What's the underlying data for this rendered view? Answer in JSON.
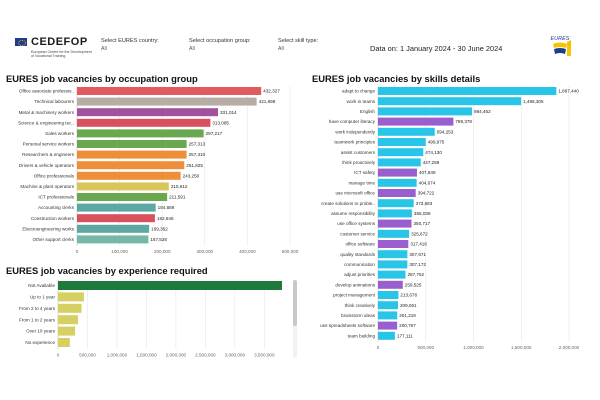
{
  "header": {
    "logo_name": "CEDEFOP",
    "logo_subtitle": "European Centre for the Development of Vocational Training",
    "filters": [
      {
        "label": "Select EURES country:",
        "value": "All"
      },
      {
        "label": "Select occupation group:",
        "value": "All"
      },
      {
        "label": "Select skill type:",
        "value": "All"
      }
    ],
    "date_range": "Data on: 1 January 2024 - 30 June 2024",
    "eures_logo_text": "EURES",
    "colors": {
      "eu_blue": "#1f3b8f",
      "eu_yellow": "#f5c400"
    }
  },
  "panels": {
    "occupation_title": "EURES job vacancies by occupation group",
    "experience_title": "EURES job vacancies by experience required",
    "skills_title": "EURES job vacancies by skills details"
  },
  "chart_data": [
    {
      "id": "occupation",
      "type": "bar",
      "orientation": "horizontal",
      "title": "EURES job vacancies by occupation group",
      "categories": [
        "Office associate professio..",
        "Technical labourers",
        "Metal & machinery workers",
        "Science & engineering tec..",
        "Sales workers",
        "Personal service workers",
        "Researchers & engineers",
        "Drivers & vehicle operators",
        "Office professionals",
        "Machine & plant operators",
        "ICT professionals",
        "Accounting clerks",
        "Construction workers",
        "Electroengineering works",
        "Other support clerks"
      ],
      "values": [
        432327,
        421698,
        331014,
        313085,
        297217,
        257313,
        257310,
        251825,
        243250,
        215612,
        211591,
        184689,
        182846,
        169362,
        167528
      ],
      "value_labels": [
        "432,327",
        "421,698",
        "331,014",
        "313,085",
        "297,217",
        "257,313",
        "257,310",
        "251,825",
        "243,250",
        "215,612",
        "211,591",
        "184,689",
        "182,846",
        "169,362",
        "167,528"
      ],
      "colors": [
        "#e05a5f",
        "#b8aca7",
        "#a2519c",
        "#d9505f",
        "#6aa84f",
        "#6aa84f",
        "#ef8e39",
        "#ef8e39",
        "#ef8e39",
        "#d7c65a",
        "#6aa84f",
        "#5ca8a3",
        "#d9505f",
        "#5ca8a3",
        "#76b7a8"
      ],
      "xlim": [
        0,
        500000
      ],
      "ticks": [
        0,
        100000,
        200000,
        300000,
        400000,
        500000
      ],
      "tick_labels": [
        "0",
        "100,000",
        "200,000",
        "300,000",
        "400,000",
        "500,000"
      ],
      "grid": true
    },
    {
      "id": "experience",
      "type": "bar",
      "orientation": "horizontal",
      "title": "EURES job vacancies by experience required",
      "categories": [
        "Not Available",
        "Up to 1 year",
        "From 2 to 4 years",
        "From 1 to 2 years",
        "Over 10 years",
        "No experience"
      ],
      "values": [
        3800000,
        440000,
        400000,
        340000,
        290000,
        200000
      ],
      "colors": [
        "#1e7a3c",
        "#d6cf62",
        "#d6cf62",
        "#d6cf62",
        "#d6cf62",
        "#d6cf62"
      ],
      "xlim": [
        0,
        3800000
      ],
      "ticks": [
        0,
        500000,
        1000000,
        1500000,
        2000000,
        2500000,
        3000000,
        3500000
      ],
      "tick_labels": [
        "0",
        "500,000",
        "1,000,000",
        "1,500,000",
        "2,000,000",
        "2,500,000",
        "3,000,000",
        "3,500,000"
      ],
      "grid": true
    },
    {
      "id": "skills",
      "type": "bar",
      "orientation": "horizontal",
      "title": "EURES job vacancies by skills details",
      "categories": [
        "adapt to change",
        "work in teams",
        "English",
        "have computer literacy",
        "work independently",
        "teamwork principles",
        "assist customers",
        "think proactively",
        "ICT safety",
        "manage time",
        "use microsoft office",
        "create solutions to proble..",
        "assume responsibility",
        "use office systems",
        "customer service",
        "office software",
        "quality standards",
        "communication",
        "adjust priorities",
        "develop animations",
        "project management",
        "think creatively",
        "brainstorm ideas",
        "use spreadsheets software",
        "team building"
      ],
      "values": [
        1867440,
        1498305,
        984462,
        789378,
        594253,
        499975,
        474130,
        447259,
        407849,
        404674,
        394722,
        373683,
        355038,
        350717,
        325672,
        317416,
        307671,
        307172,
        287752,
        259525,
        213678,
        209061,
        201319,
        200767,
        177111
      ],
      "value_labels": [
        "1,867,440",
        "1,498,305",
        "984,462",
        "789,378",
        "594,253",
        "499,975",
        "474,130",
        "447,259",
        "407,849",
        "404,674",
        "394,722",
        "373,683",
        "355,038",
        "350,717",
        "325,672",
        "317,416",
        "307,671",
        "307,172",
        "287,752",
        "259,525",
        "213,678",
        "209,061",
        "201,319",
        "200,767",
        "177,111"
      ],
      "colors": [
        "#29c5e8",
        "#29c5e8",
        "#29c5e8",
        "#9a5fcf",
        "#29c5e8",
        "#29c5e8",
        "#29c5e8",
        "#29c5e8",
        "#9a5fcf",
        "#29c5e8",
        "#9a5fcf",
        "#29c5e8",
        "#29c5e8",
        "#9a5fcf",
        "#29c5e8",
        "#9a5fcf",
        "#29c5e8",
        "#29c5e8",
        "#29c5e8",
        "#9a5fcf",
        "#29c5e8",
        "#29c5e8",
        "#29c5e8",
        "#9a5fcf",
        "#29c5e8"
      ],
      "xlim": [
        0,
        2000000
      ],
      "ticks": [
        0,
        500000,
        1000000,
        1500000,
        2000000
      ],
      "tick_labels": [
        "0",
        "500,000",
        "1,000,000",
        "1,500,000",
        "2,000,000"
      ],
      "grid": true
    }
  ]
}
